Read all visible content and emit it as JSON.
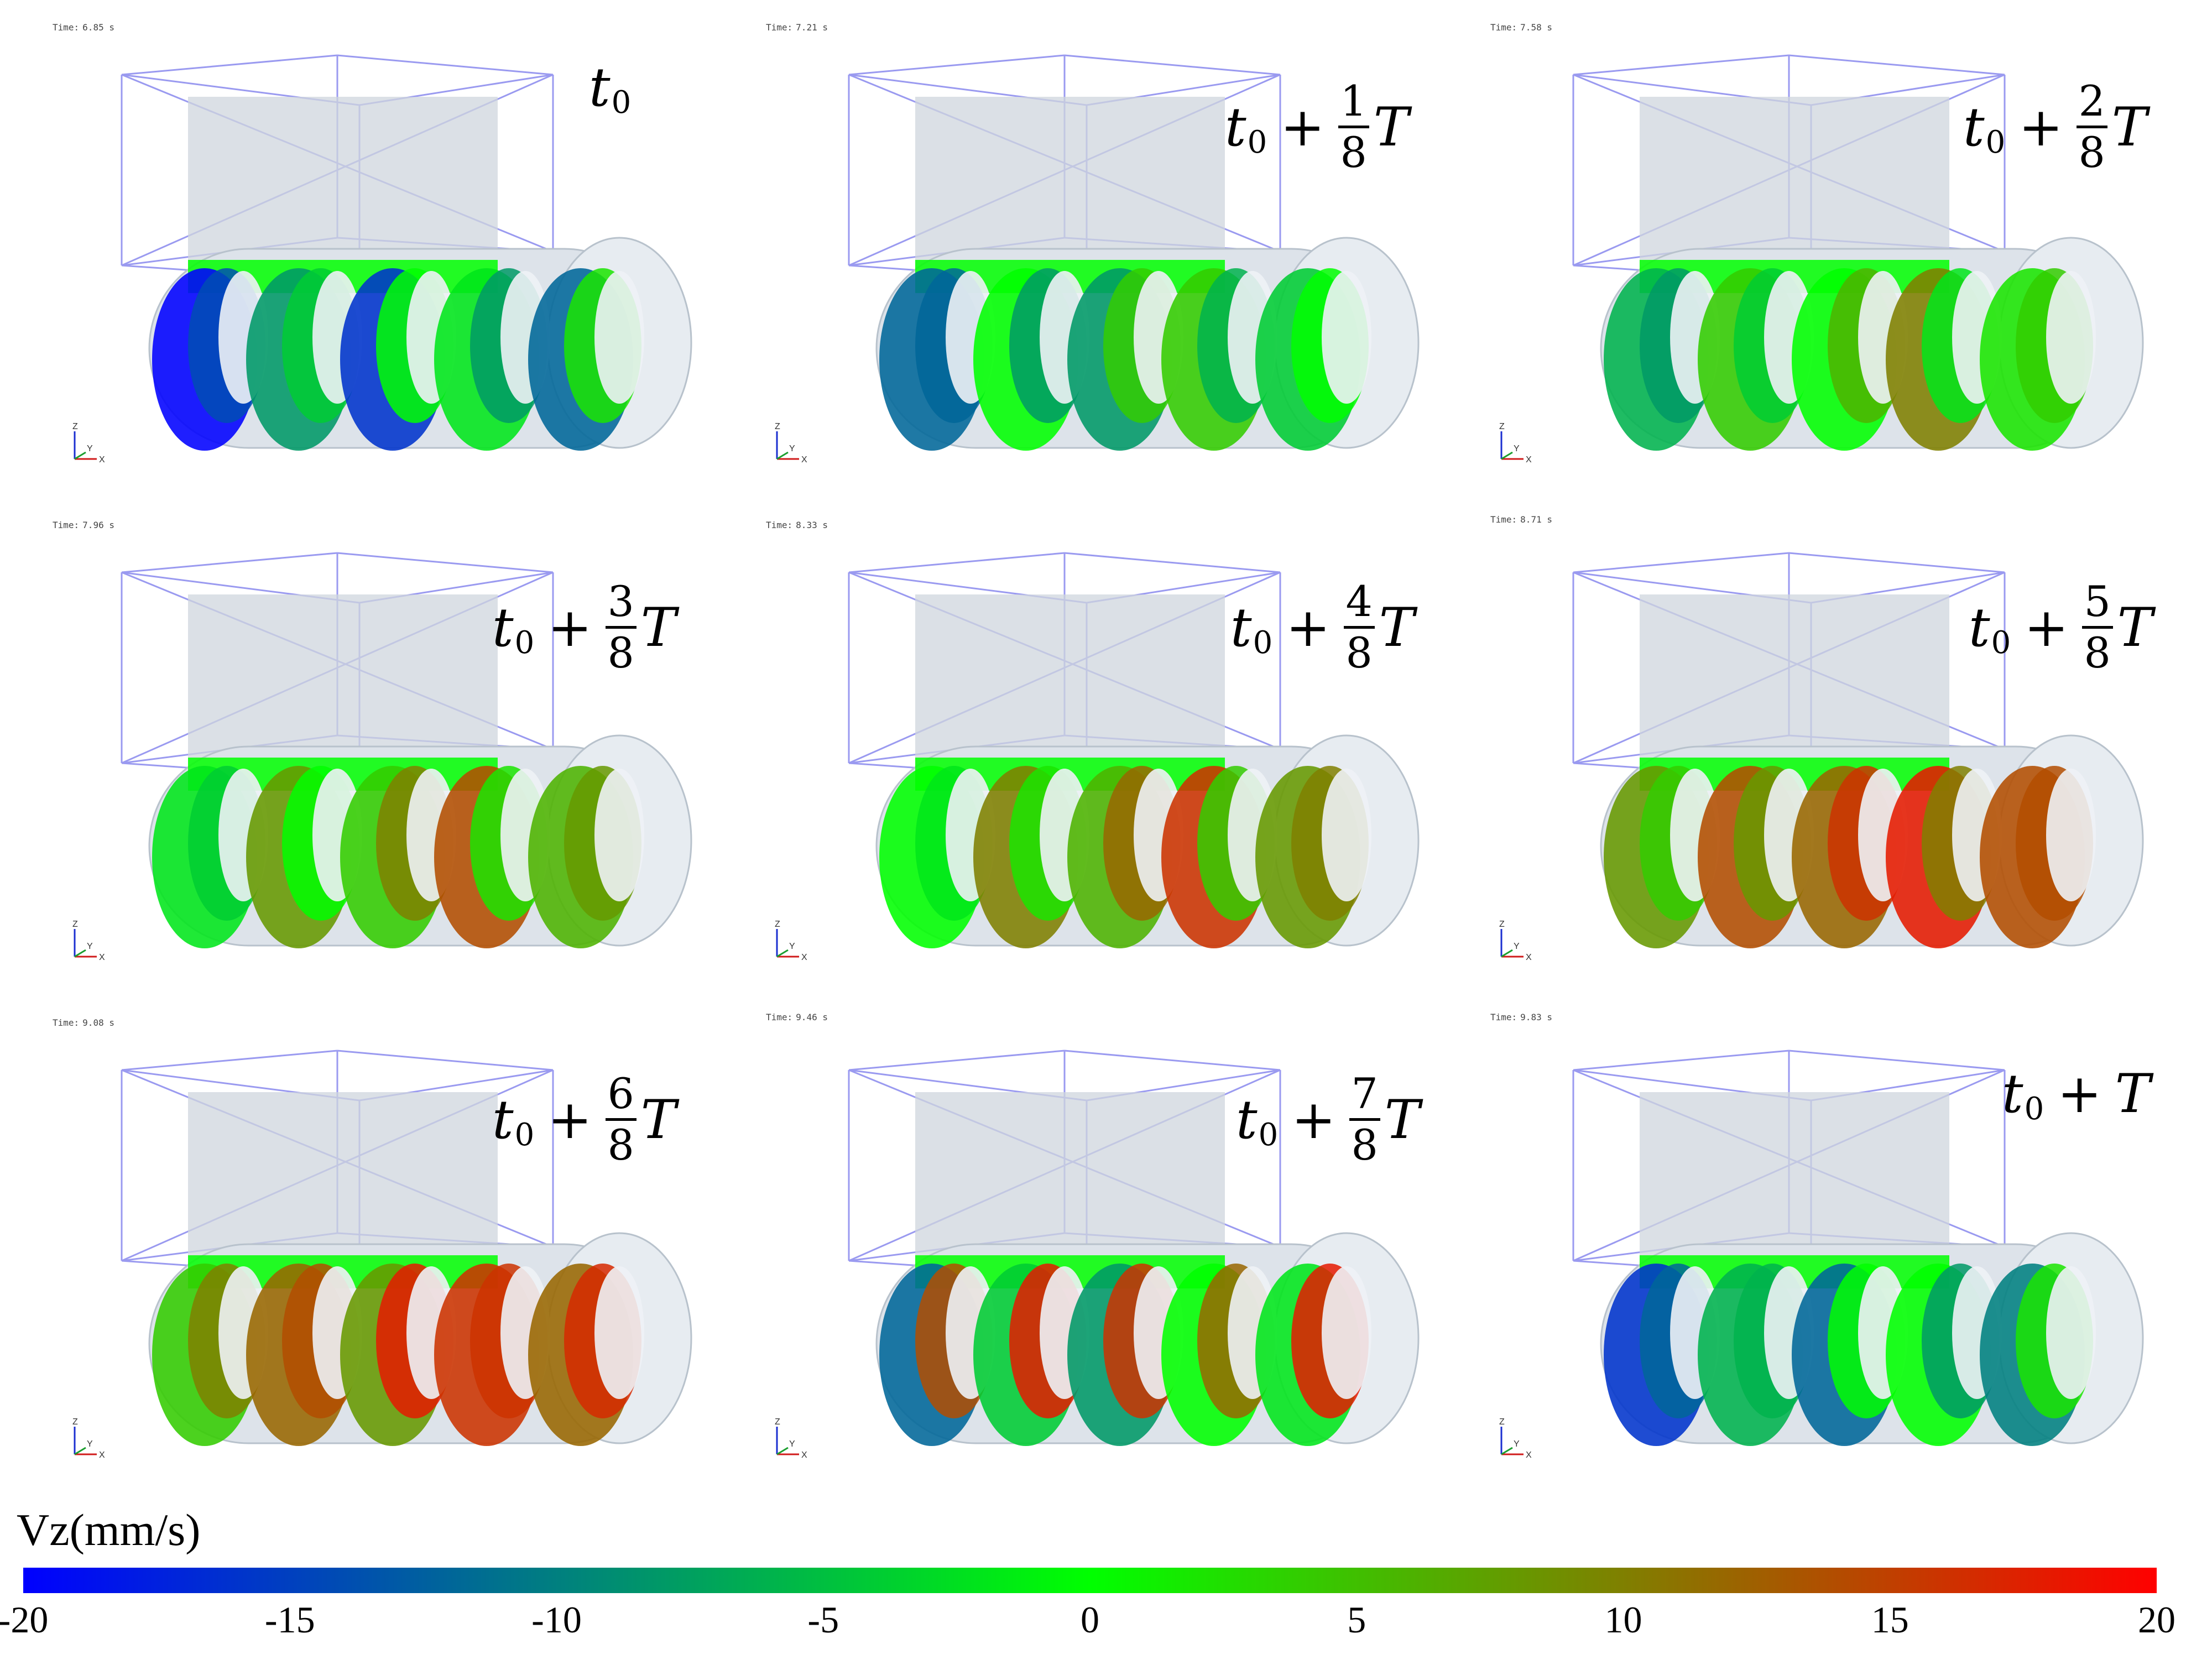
{
  "panels": [
    {
      "time": "6.85 s",
      "base": "t",
      "sub": "0",
      "num": "",
      "den": "",
      "suffix": ""
    },
    {
      "time": "7.21 s",
      "base": "t",
      "sub": "0",
      "num": "1",
      "den": "8",
      "suffix": "T"
    },
    {
      "time": "7.58 s",
      "base": "t",
      "sub": "0",
      "num": "2",
      "den": "8",
      "suffix": "T"
    },
    {
      "time": "7.96 s",
      "base": "t",
      "sub": "0",
      "num": "3",
      "den": "8",
      "suffix": "T"
    },
    {
      "time": "8.33 s",
      "base": "t",
      "sub": "0",
      "num": "4",
      "den": "8",
      "suffix": "T"
    },
    {
      "time": "8.71 s",
      "base": "t",
      "sub": "0",
      "num": "5",
      "den": "8",
      "suffix": "T"
    },
    {
      "time": "9.08 s",
      "base": "t",
      "sub": "0",
      "num": "6",
      "den": "8",
      "suffix": "T"
    },
    {
      "time": "9.46 s",
      "base": "t",
      "sub": "0",
      "num": "7",
      "den": "8",
      "suffix": "T"
    },
    {
      "time": "9.83 s",
      "base": "t",
      "sub": "0",
      "num": "",
      "den": "",
      "suffix": "T"
    }
  ],
  "time_prefix": "Time:",
  "plus_sign": "+",
  "axis": {
    "z": "Z",
    "y": "Y",
    "x": "X"
  },
  "colorbar": {
    "title": "Vz(mm/s)",
    "ticks": [
      "-20",
      "-15",
      "-10",
      "-5",
      "0",
      "5",
      "10",
      "15",
      "20"
    ],
    "colors": {
      "low": "#0000ff",
      "mid": "#00ff00",
      "high": "#ff0000"
    }
  }
}
